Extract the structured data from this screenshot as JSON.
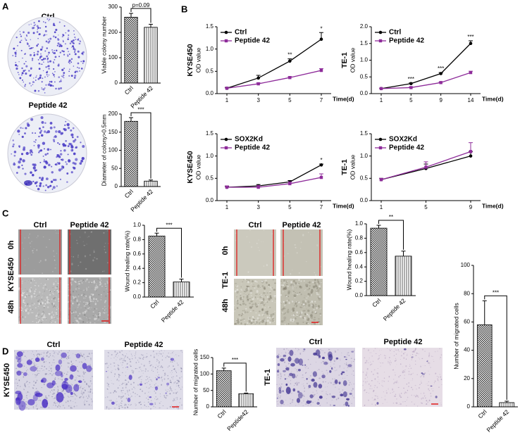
{
  "panels": {
    "A": {
      "letter": "A",
      "plate_labels": [
        "Ctrl",
        "Peptide 42"
      ]
    },
    "B": {
      "letter": "B"
    },
    "C": {
      "letter": "C",
      "left": {
        "cell_line": "KYSE450",
        "columns": [
          "Ctrl",
          "Peptide 42"
        ],
        "rows": [
          "0h",
          "48h"
        ]
      },
      "right": {
        "cell_line": "TE-1",
        "columns": [
          "Ctrl",
          "Peptide 42"
        ],
        "rows": [
          "0h",
          "48h"
        ]
      }
    },
    "D": {
      "letter": "D",
      "left": {
        "cell_line": "KYSE450",
        "columns": [
          "Ctrl",
          "Peptide 42"
        ]
      },
      "right": {
        "cell_line": "TE-1",
        "columns": [
          "Ctrl",
          "Peptide 42"
        ]
      }
    }
  },
  "chart_data": [
    {
      "type": "bar",
      "ylabel": "Viable colony number",
      "categories": [
        "Ctrl",
        "Peptide 42"
      ],
      "values": [
        260,
        220
      ],
      "errors": [
        15,
        12
      ],
      "ylim": [
        0,
        300
      ],
      "yticks": [
        0,
        100,
        200,
        300
      ],
      "annotation": "p=0.09"
    },
    {
      "type": "bar",
      "ylabel": "Diameter of colony>0.5mm",
      "categories": [
        "Ctrl",
        "Peptide 42"
      ],
      "values": [
        180,
        15
      ],
      "errors": [
        10,
        3
      ],
      "ylim": [
        0,
        200
      ],
      "yticks": [
        0,
        50,
        100,
        150,
        200
      ],
      "annotation": "***"
    },
    {
      "type": "line",
      "row_label": "KYSE450",
      "ylabel": "OD value",
      "xlabel": "Time(d)",
      "categories": [
        "1",
        "3",
        "5",
        "7"
      ],
      "ylim": [
        0,
        1.5
      ],
      "yticks": [
        {
          "value": 0,
          "label": "0.0"
        },
        0.5,
        {
          "value": 1,
          "label": "1.0"
        },
        1.5
      ],
      "series": [
        {
          "name": "Ctrl",
          "color": "#000000",
          "marker": "circle",
          "values": [
            0.12,
            0.35,
            0.73,
            1.22
          ],
          "errors": [
            0.02,
            0.06,
            0.05,
            0.15
          ]
        },
        {
          "name": "Peptide 42",
          "color": "#8e2c9a",
          "marker": "square",
          "values": [
            0.12,
            0.22,
            0.36,
            0.52
          ],
          "errors": [
            0.01,
            0.02,
            0.02,
            0.04
          ]
        }
      ],
      "annotations": [
        null,
        null,
        "**",
        "*"
      ]
    },
    {
      "type": "line",
      "row_label": "TE-1",
      "ylabel": "OD value",
      "xlabel": "Time(d)",
      "categories": [
        "1",
        "5",
        "9",
        "14"
      ],
      "ylim": [
        0,
        2
      ],
      "yticks": [
        {
          "value": 0,
          "label": "0.0"
        },
        0.5,
        {
          "value": 1,
          "label": "1.0"
        },
        1.5,
        {
          "value": 2,
          "label": "2.0"
        }
      ],
      "series": [
        {
          "name": "Ctrl",
          "color": "#000000",
          "marker": "circle",
          "values": [
            0.15,
            0.3,
            0.6,
            1.5
          ],
          "errors": [
            0.01,
            0.02,
            0.03,
            0.08
          ]
        },
        {
          "name": "Peptide 42",
          "color": "#8e2c9a",
          "marker": "square",
          "values": [
            0.15,
            0.18,
            0.33,
            0.63
          ],
          "errors": [
            0.01,
            0.02,
            0.02,
            0.04
          ]
        }
      ],
      "annotations": [
        null,
        "***",
        "***",
        "***"
      ]
    },
    {
      "type": "line",
      "row_label": "KYSE450",
      "ylabel": "OD value",
      "xlabel": "Time(d)",
      "categories": [
        "1",
        "3",
        "5",
        "7"
      ],
      "ylim": [
        0,
        1.5
      ],
      "yticks": [
        {
          "value": 0,
          "label": "0.0"
        },
        0.5,
        {
          "value": 1,
          "label": "1.0"
        },
        1.5
      ],
      "series": [
        {
          "name": "SOX2Kd",
          "color": "#000000",
          "marker": "circle",
          "values": [
            0.3,
            0.33,
            0.42,
            0.8
          ],
          "errors": [
            0.02,
            0.03,
            0.03,
            0.02
          ]
        },
        {
          "name": "Peptide 42",
          "color": "#8e2c9a",
          "marker": "square",
          "values": [
            0.3,
            0.3,
            0.38,
            0.52
          ],
          "errors": [
            0.03,
            0.04,
            0.04,
            0.08
          ]
        }
      ],
      "annotations": [
        null,
        null,
        null,
        "*"
      ]
    },
    {
      "type": "line",
      "row_label": "TE-1",
      "ylabel": "OD value",
      "xlabel": "Time(d)",
      "categories": [
        "1",
        "5",
        "9"
      ],
      "ylim": [
        0,
        1.5
      ],
      "yticks": [
        {
          "value": 0,
          "label": "0.0"
        },
        0.5,
        {
          "value": 1,
          "label": "1.0"
        },
        1.5
      ],
      "series": [
        {
          "name": "SOX2Kd",
          "color": "#000000",
          "marker": "circle",
          "values": [
            0.47,
            0.72,
            1.0
          ],
          "errors": [
            0.03,
            0.1,
            0.1
          ]
        },
        {
          "name": "Peptide 42",
          "color": "#8e2c9a",
          "marker": "square",
          "values": [
            0.47,
            0.75,
            1.1
          ],
          "errors": [
            0.03,
            0.12,
            0.2
          ]
        }
      ]
    },
    {
      "type": "bar",
      "ylabel": "Wound healing rate(%)",
      "categories": [
        "Ctrl",
        "Peptide 42"
      ],
      "values": [
        0.85,
        0.21
      ],
      "errors": [
        0.04,
        0.04
      ],
      "ylim": [
        0,
        1
      ],
      "yticks": [
        {
          "value": 0,
          "label": "0.0"
        },
        0.2,
        0.4,
        0.6,
        0.8,
        {
          "value": 1,
          "label": "1.0"
        }
      ],
      "annotation": "***"
    },
    {
      "type": "bar",
      "ylabel": "Wound healing rate(%)",
      "categories": [
        "Ctrl",
        "Peptide 42"
      ],
      "values": [
        0.94,
        0.55
      ],
      "errors": [
        0.04,
        0.07
      ],
      "ylim": [
        0,
        1
      ],
      "yticks": [
        {
          "value": 0,
          "label": "0.0"
        },
        0.2,
        0.4,
        0.6,
        0.8,
        {
          "value": 1,
          "label": "1.0"
        }
      ],
      "annotation": "**"
    },
    {
      "type": "bar",
      "ylabel": "Number of migrated cells",
      "categories": [
        "Ctrl",
        "Peptide42"
      ],
      "values": [
        110,
        40
      ],
      "errors": [
        8,
        2
      ],
      "ylim": [
        0,
        150
      ],
      "yticks": [
        0,
        50,
        100,
        150
      ],
      "annotation": "***"
    },
    {
      "type": "bar",
      "ylabel": "Number of migrated cells",
      "categories": [
        "Ctrl",
        "Peptide 42"
      ],
      "values": [
        58,
        3
      ],
      "errors": [
        17,
        1
      ],
      "ylim": [
        0,
        100
      ],
      "yticks": [
        0,
        20,
        40,
        60,
        80,
        100
      ],
      "annotation": "***"
    }
  ]
}
